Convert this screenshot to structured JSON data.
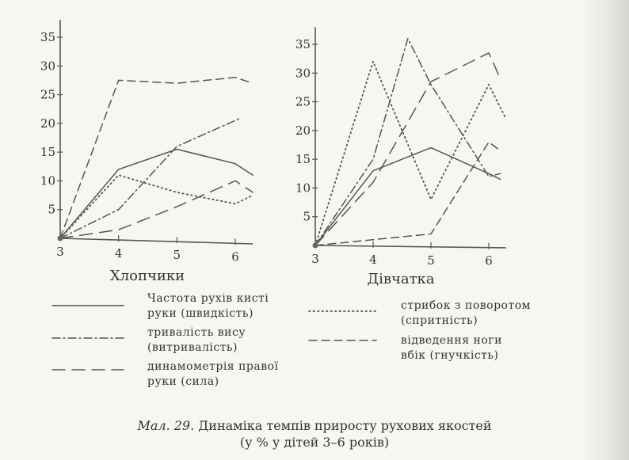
{
  "caption": {
    "figure_label": "Мал. 29.",
    "title": "Динаміка темпів приросту рухових якостей",
    "subtitle": "(у % у дітей 3–6 років)"
  },
  "legend": [
    {
      "key": "speed",
      "line1": "Частота рухів кисті",
      "line2": "руки (швидкість)",
      "dash": "solid"
    },
    {
      "key": "endurance",
      "line1": "тривалість вису",
      "line2": "(витривалість)",
      "dash": "dashdot"
    },
    {
      "key": "strength",
      "line1": "динамометрія правої",
      "line2": "руки (сила)",
      "dash": "longdash"
    },
    {
      "key": "agility",
      "line1": "стрибок з поворотом",
      "line2": "(спритність)",
      "dash": "dotted"
    },
    {
      "key": "flex",
      "line1": "відведення ноги",
      "line2": "вбік (гнучкість)",
      "dash": "shortdash"
    }
  ],
  "chart_data": [
    {
      "type": "line",
      "xlabel": "Хлопчики",
      "x_ticks": [
        "3",
        "4",
        "5",
        "6"
      ],
      "y_ticks": [
        "5",
        "10",
        "15",
        "20",
        "25",
        "30",
        "35"
      ],
      "xlim": [
        3,
        6.3
      ],
      "ylim": [
        0,
        38
      ],
      "series": [
        {
          "key": "speed",
          "x": [
            3,
            4,
            5,
            6,
            6.3
          ],
          "y": [
            0,
            12,
            15.5,
            13,
            11
          ]
        },
        {
          "key": "endurance",
          "x": [
            3,
            4,
            5,
            6,
            6.1
          ],
          "y": [
            0,
            5,
            16,
            20.5,
            21
          ]
        },
        {
          "key": "strength",
          "x": [
            3,
            4,
            5,
            6,
            6.3
          ],
          "y": [
            0,
            1.5,
            5.5,
            10,
            8
          ]
        },
        {
          "key": "agility",
          "x": [
            3,
            4,
            5,
            6,
            6.3
          ],
          "y": [
            0,
            11,
            8,
            6,
            7.5
          ]
        },
        {
          "key": "flex",
          "x": [
            3,
            4,
            5,
            6,
            6.3
          ],
          "y": [
            0,
            27.5,
            27,
            28,
            27
          ]
        }
      ]
    },
    {
      "type": "line",
      "xlabel": "Дівчатка",
      "x_ticks": [
        "3",
        "4",
        "5",
        "6"
      ],
      "y_ticks": [
        "5",
        "10",
        "15",
        "20",
        "25",
        "30",
        "35"
      ],
      "xlim": [
        3,
        6.3
      ],
      "ylim": [
        0,
        38
      ],
      "series": [
        {
          "key": "speed",
          "x": [
            3,
            4,
            5,
            6,
            6.2
          ],
          "y": [
            0,
            13,
            17,
            12.5,
            11.5
          ]
        },
        {
          "key": "endurance",
          "x": [
            3,
            4,
            4.6,
            5,
            6,
            6.2
          ],
          "y": [
            0,
            15,
            36,
            28,
            12,
            12.5
          ]
        },
        {
          "key": "strength",
          "x": [
            3,
            4,
            5,
            6,
            6.2
          ],
          "y": [
            0,
            11,
            28.5,
            33.5,
            29
          ]
        },
        {
          "key": "agility",
          "x": [
            3,
            4,
            5,
            6,
            6.3
          ],
          "y": [
            0,
            32,
            8,
            28,
            22
          ]
        },
        {
          "key": "flex",
          "x": [
            3,
            4,
            5,
            6,
            6.2
          ],
          "y": [
            0,
            1,
            2,
            18,
            16.5
          ]
        }
      ]
    }
  ]
}
